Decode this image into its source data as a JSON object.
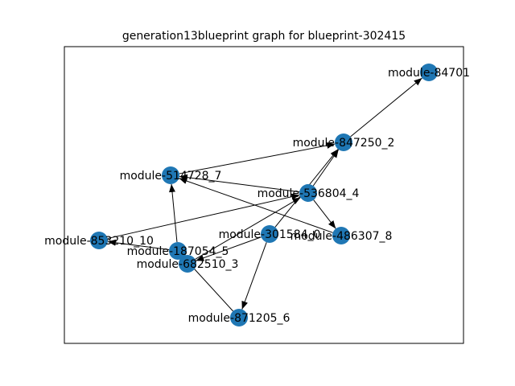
{
  "figure": {
    "title": "generation13blueprint graph for blueprint-302415",
    "node_color": "#1f77b4",
    "edge_color": "#000000"
  },
  "graph": {
    "nodes": [
      {
        "id": "module-84701",
        "label": "module-84701"
      },
      {
        "id": "module-847250_2",
        "label": "module-847250_2"
      },
      {
        "id": "module-514728_7",
        "label": "module-514728_7"
      },
      {
        "id": "module-536804_4",
        "label": "module-536804_4"
      },
      {
        "id": "module-853210_10",
        "label": "module-853210_10"
      },
      {
        "id": "module-187054_5",
        "label": "module-187054_5"
      },
      {
        "id": "module-301584_0",
        "label": "module-301584_0"
      },
      {
        "id": "module-486307_8",
        "label": "module-486307_8"
      },
      {
        "id": "module-682510_3",
        "label": "module-682510_3"
      },
      {
        "id": "module-871205_6",
        "label": "module-871205_6"
      }
    ],
    "edges": [
      {
        "from": "module-847250_2",
        "to": "module-84701",
        "directed": true
      },
      {
        "from": "module-514728_7",
        "to": "module-847250_2",
        "directed": true
      },
      {
        "from": "module-536804_4",
        "to": "module-847250_2",
        "directed": true
      },
      {
        "from": "module-301584_0",
        "to": "module-847250_2",
        "directed": true
      },
      {
        "from": "module-536804_4",
        "to": "module-514728_7",
        "directed": true
      },
      {
        "from": "module-486307_8",
        "to": "module-514728_7",
        "directed": true
      },
      {
        "from": "module-187054_5",
        "to": "module-514728_7",
        "directed": true
      },
      {
        "from": "module-536804_4",
        "to": "module-486307_8",
        "directed": true
      },
      {
        "from": "module-853210_10",
        "to": "module-536804_4",
        "directed": true
      },
      {
        "from": "module-682510_3",
        "to": "module-536804_4",
        "directed": true
      },
      {
        "from": "module-187054_5",
        "to": "module-853210_10",
        "directed": true
      },
      {
        "from": "module-301584_0",
        "to": "module-682510_3",
        "directed": true
      },
      {
        "from": "module-301584_0",
        "to": "module-871205_6",
        "directed": true
      },
      {
        "from": "module-187054_5",
        "to": "module-871205_6",
        "directed": false
      },
      {
        "from": "module-187054_5",
        "to": "module-682510_3",
        "directed": false
      }
    ]
  }
}
